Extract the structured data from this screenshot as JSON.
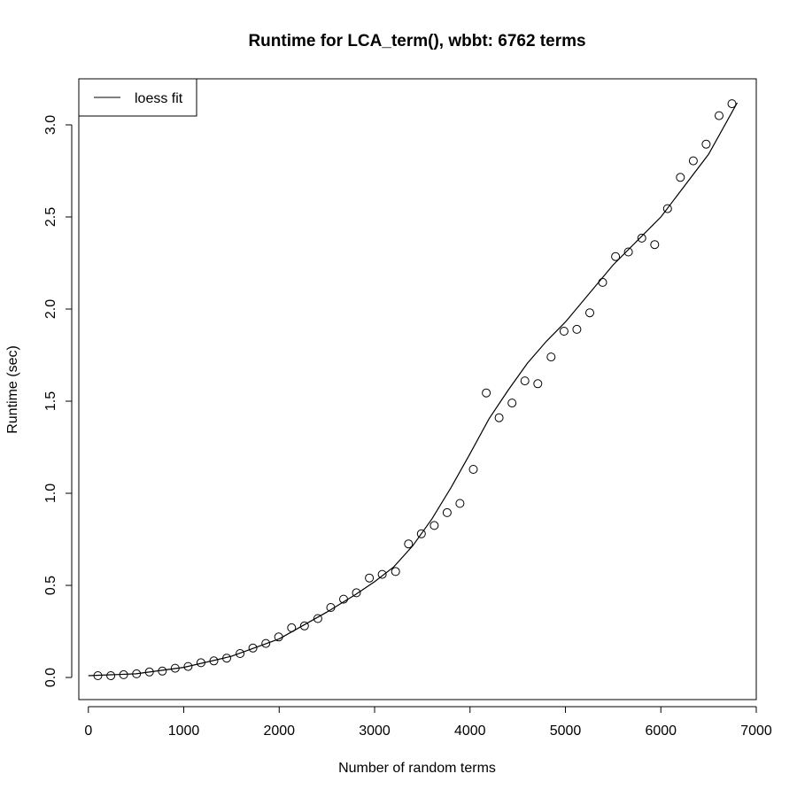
{
  "chart_data": {
    "type": "scatter",
    "title": "Runtime for LCA_term(), wbbt: 6762 terms",
    "xlabel": "Number of random terms",
    "ylabel": "Runtime (sec)",
    "xlim": [
      -100,
      7000
    ],
    "ylim": [
      -0.12,
      3.25
    ],
    "x_ticks": [
      0,
      1000,
      2000,
      3000,
      4000,
      5000,
      6000,
      7000
    ],
    "x_tick_labels": [
      "0",
      "1000",
      "2000",
      "3000",
      "4000",
      "5000",
      "6000",
      "7000"
    ],
    "y_ticks": [
      0.0,
      0.5,
      1.0,
      1.5,
      2.0,
      2.5,
      3.0
    ],
    "y_tick_labels": [
      "0.0",
      "0.5",
      "1.0",
      "1.5",
      "2.0",
      "2.5",
      "3.0"
    ],
    "grid": false,
    "legend": {
      "position": "top-left",
      "entries": [
        "loess fit"
      ]
    },
    "series": [
      {
        "style": "points",
        "x": [
          100,
          235,
          370,
          505,
          640,
          775,
          910,
          1045,
          1180,
          1315,
          1450,
          1590,
          1725,
          1860,
          1995,
          2130,
          2265,
          2405,
          2540,
          2675,
          2810,
          2945,
          3080,
          3220,
          3355,
          3490,
          3625,
          3760,
          3895,
          4035,
          4170,
          4305,
          4440,
          4575,
          4710,
          4850,
          4985,
          5120,
          5255,
          5390,
          5525,
          5660,
          5800,
          5935,
          6070,
          6205,
          6340,
          6475,
          6610,
          6745
        ],
        "y": [
          0.01,
          0.01,
          0.015,
          0.02,
          0.03,
          0.035,
          0.05,
          0.06,
          0.08,
          0.09,
          0.105,
          0.13,
          0.16,
          0.185,
          0.22,
          0.27,
          0.28,
          0.32,
          0.38,
          0.425,
          0.46,
          0.54,
          0.56,
          0.575,
          0.725,
          0.78,
          0.825,
          0.895,
          0.945,
          1.13,
          1.545,
          1.41,
          1.49,
          1.61,
          1.595,
          1.74,
          1.88,
          1.89,
          1.98,
          2.145,
          2.285,
          2.31,
          2.385,
          2.35,
          2.545,
          2.715,
          2.805,
          2.895,
          3.05,
          3.115
        ]
      },
      {
        "name": "loess fit",
        "style": "line",
        "x": [
          0,
          500,
          1000,
          1500,
          2000,
          2500,
          2800,
          3000,
          3200,
          3400,
          3600,
          3800,
          4000,
          4200,
          4400,
          4600,
          4800,
          5000,
          5500,
          6000,
          6500,
          6800
        ],
        "y": [
          0.01,
          0.02,
          0.055,
          0.115,
          0.21,
          0.355,
          0.45,
          0.52,
          0.6,
          0.715,
          0.86,
          1.03,
          1.215,
          1.405,
          1.56,
          1.705,
          1.825,
          1.93,
          2.24,
          2.5,
          2.84,
          3.12
        ]
      }
    ]
  }
}
